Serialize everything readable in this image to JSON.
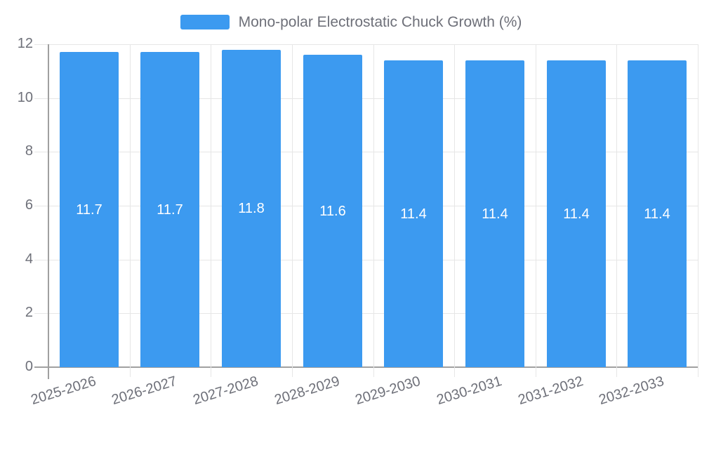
{
  "legend": {
    "label": "Mono-polar Electrostatic Chuck Growth (%)"
  },
  "chart_data": {
    "type": "bar",
    "title": "",
    "legend_entries": [
      "Mono-polar Electrostatic Chuck Growth (%)"
    ],
    "legend_position": "top-center",
    "categories": [
      "2025-2026",
      "2026-2027",
      "2027-2028",
      "2028-2029",
      "2029-2030",
      "2030-2031",
      "2031-2032",
      "2032-2033"
    ],
    "series": [
      {
        "name": "Mono-polar Electrostatic Chuck Growth (%)",
        "values": [
          11.7,
          11.7,
          11.8,
          11.6,
          11.4,
          11.4,
          11.4,
          11.4
        ]
      }
    ],
    "data_labels": [
      "11.7",
      "11.7",
      "11.8",
      "11.6",
      "11.4",
      "11.4",
      "11.4",
      "11.4"
    ],
    "data_label_position": "inside-center",
    "xlabel": "",
    "ylabel": "",
    "ylim": [
      0,
      12
    ],
    "yticks": [
      0,
      2,
      4,
      6,
      8,
      10,
      12
    ],
    "grid": true,
    "x_label_rotation_deg": -17,
    "colors": {
      "bar": "#3C9AF0",
      "data_label": "#FFFFFF",
      "axis_text": "#6E7079",
      "grid_line": "#E6E6E6",
      "axis_line": "#A0A0A0",
      "background": "#FFFFFF"
    }
  }
}
